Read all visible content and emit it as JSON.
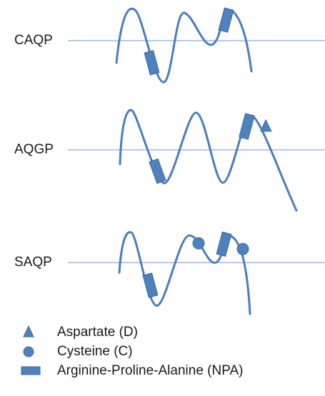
{
  "rows": [
    {
      "label": "CAQP"
    },
    {
      "label": "AQGP"
    },
    {
      "label": "SAQP"
    }
  ],
  "legend": [
    {
      "label": "Aspartate (D)"
    },
    {
      "label": "Cysteine (C)"
    },
    {
      "label": "Arginine-Proline-Alanine (NPA)"
    }
  ]
}
